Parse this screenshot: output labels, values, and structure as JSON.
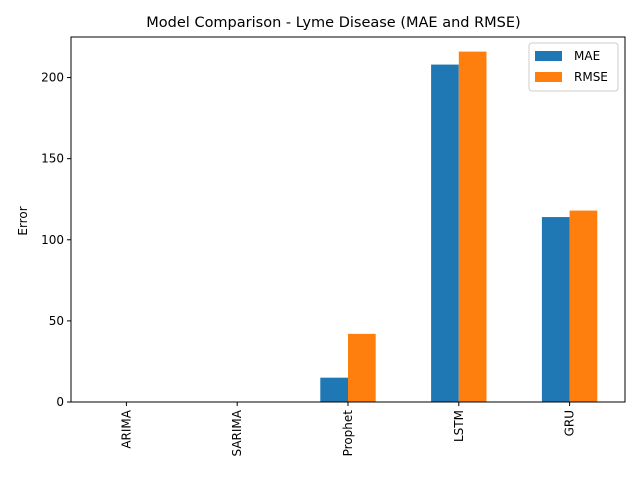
{
  "chart_data": {
    "type": "bar",
    "title": "Model Comparison - Lyme Disease (MAE and RMSE)",
    "xlabel": "",
    "ylabel": "Error",
    "categories": [
      "ARIMA",
      "SARIMA",
      "Prophet",
      "LSTM",
      "GRU"
    ],
    "series": [
      {
        "name": "MAE",
        "color": "#1f77b4",
        "values": [
          0,
          0,
          15,
          208,
          114
        ]
      },
      {
        "name": "RMSE",
        "color": "#ff7f0e",
        "values": [
          0,
          0,
          42,
          216,
          118
        ]
      }
    ],
    "ylim": [
      0,
      225
    ],
    "yticks": [
      0,
      50,
      100,
      150,
      200
    ],
    "grid": false,
    "legend_position": "top-right"
  }
}
